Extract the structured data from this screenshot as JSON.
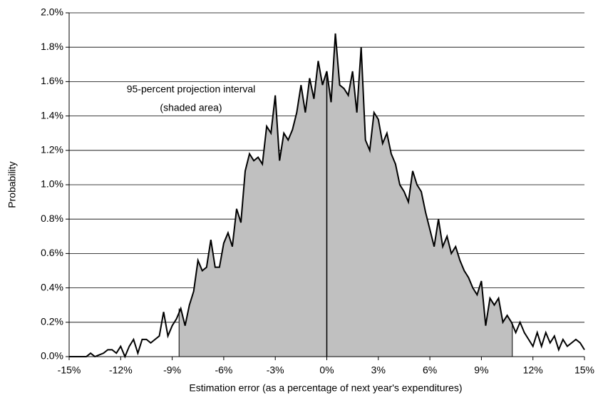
{
  "chart_data": {
    "type": "area_line",
    "x_label": "Estimation error (as a percentage of next year's expenditures)",
    "y_label": "Probability",
    "annotation": [
      "95-percent projection interval",
      "(shaded area)"
    ],
    "x": [
      -15,
      -14.75,
      -14.5,
      -14.25,
      -14,
      -13.75,
      -13.5,
      -13.25,
      -13,
      -12.75,
      -12.5,
      -12.25,
      -12,
      -11.75,
      -11.5,
      -11.25,
      -11,
      -10.75,
      -10.5,
      -10.25,
      -10,
      -9.75,
      -9.5,
      -9.25,
      -9,
      -8.75,
      -8.5,
      -8.25,
      -8,
      -7.75,
      -7.5,
      -7.25,
      -7,
      -6.75,
      -6.5,
      -6.25,
      -6,
      -5.75,
      -5.5,
      -5.25,
      -5,
      -4.75,
      -4.5,
      -4.25,
      -4,
      -3.75,
      -3.5,
      -3.25,
      -3,
      -2.75,
      -2.5,
      -2.25,
      -2,
      -1.75,
      -1.5,
      -1.25,
      -1,
      -0.75,
      -0.5,
      -0.25,
      0,
      0.25,
      0.5,
      0.75,
      1,
      1.25,
      1.5,
      1.75,
      2,
      2.25,
      2.5,
      2.75,
      3,
      3.25,
      3.5,
      3.75,
      4,
      4.25,
      4.5,
      4.75,
      5,
      5.25,
      5.5,
      5.75,
      6,
      6.25,
      6.5,
      6.75,
      7,
      7.25,
      7.5,
      7.75,
      8,
      8.25,
      8.5,
      8.75,
      9,
      9.25,
      9.5,
      9.75,
      10,
      10.25,
      10.5,
      10.75,
      11,
      11.25,
      11.5,
      11.75,
      12,
      12.25,
      12.5,
      12.75,
      13,
      13.25,
      13.5,
      13.75,
      14,
      14.25,
      14.5,
      14.75,
      15
    ],
    "values": [
      0,
      0,
      0,
      0,
      0,
      0.02,
      0,
      0.01,
      0.02,
      0.04,
      0.04,
      0.02,
      0.06,
      0,
      0.06,
      0.1,
      0.02,
      0.1,
      0.1,
      0.08,
      0.1,
      0.12,
      0.26,
      0.12,
      0.18,
      0.22,
      0.28,
      0.18,
      0.3,
      0.38,
      0.56,
      0.5,
      0.52,
      0.68,
      0.52,
      0.52,
      0.66,
      0.72,
      0.64,
      0.86,
      0.78,
      1.08,
      1.18,
      1.14,
      1.16,
      1.12,
      1.34,
      1.3,
      1.52,
      1.14,
      1.3,
      1.26,
      1.32,
      1.42,
      1.58,
      1.42,
      1.62,
      1.5,
      1.72,
      1.58,
      1.66,
      1.48,
      1.88,
      1.58,
      1.56,
      1.52,
      1.66,
      1.42,
      1.8,
      1.26,
      1.2,
      1.42,
      1.38,
      1.24,
      1.3,
      1.18,
      1.12,
      1.0,
      0.96,
      0.9,
      1.08,
      1.0,
      0.96,
      0.84,
      0.74,
      0.64,
      0.8,
      0.64,
      0.7,
      0.6,
      0.64,
      0.56,
      0.5,
      0.46,
      0.4,
      0.36,
      0.44,
      0.18,
      0.34,
      0.3,
      0.34,
      0.2,
      0.24,
      0.2,
      0.14,
      0.2,
      0.14,
      0.1,
      0.06,
      0.14,
      0.06,
      0.14,
      0.08,
      0.12,
      0.04,
      0.1,
      0.06,
      0.08,
      0.1,
      0.08,
      0.04
    ],
    "color": "#000000",
    "shade_color": "#c0c0c0",
    "shade": [
      -8.6,
      10.8
    ],
    "reference_line": 0,
    "xlim": [
      -15,
      15
    ],
    "xticks": [
      {
        "value": -15,
        "label": "-15%"
      },
      {
        "value": -12,
        "label": "-12%"
      },
      {
        "value": -9,
        "label": "-9%"
      },
      {
        "value": -6,
        "label": "-6%"
      },
      {
        "value": -3,
        "label": "-3%"
      },
      {
        "value": 0,
        "label": "0%"
      },
      {
        "value": 3,
        "label": "3%"
      },
      {
        "value": 6,
        "label": "6%"
      },
      {
        "value": 9,
        "label": "9%"
      },
      {
        "value": 12,
        "label": "12%"
      },
      {
        "value": 15,
        "label": "15%"
      }
    ],
    "ylim": [
      0,
      2
    ],
    "yticks": [
      {
        "value": 0,
        "label": "0.0%"
      },
      {
        "value": 0.2,
        "label": "0.2%"
      },
      {
        "value": 0.4,
        "label": "0.4%"
      },
      {
        "value": 0.6,
        "label": "0.6%"
      },
      {
        "value": 0.8,
        "label": "0.8%"
      },
      {
        "value": 1.0,
        "label": "1.0%"
      },
      {
        "value": 1.2,
        "label": "1.2%"
      },
      {
        "value": 1.4,
        "label": "1.4%"
      },
      {
        "value": 1.6,
        "label": "1.6%"
      },
      {
        "value": 1.8,
        "label": "1.8%"
      },
      {
        "value": 2.0,
        "label": "2.0%"
      }
    ],
    "grid": true
  }
}
